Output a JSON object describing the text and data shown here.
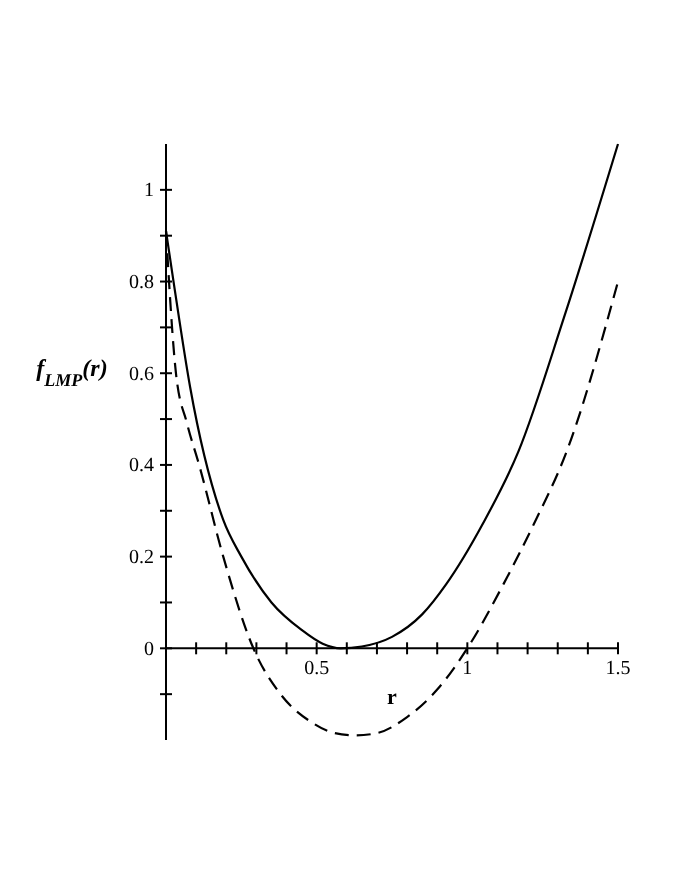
{
  "chart_data": {
    "type": "line",
    "xlabel": "r",
    "ylabel": "f$_{LMP}$(r)",
    "xlim": [
      0,
      1.5
    ],
    "ylim": [
      -0.2,
      1.1
    ],
    "xticks": [
      {
        "value": 0.1,
        "label": null
      },
      {
        "value": 0.2,
        "label": null
      },
      {
        "value": 0.3,
        "label": null
      },
      {
        "value": 0.4,
        "label": null
      },
      0.5,
      {
        "value": 0.6,
        "label": null
      },
      {
        "value": 0.7,
        "label": null
      },
      {
        "value": 0.8,
        "label": null
      },
      {
        "value": 0.9,
        "label": null
      },
      1,
      {
        "value": 1.1,
        "label": null
      },
      {
        "value": 1.2,
        "label": null
      },
      {
        "value": 1.3,
        "label": null
      },
      {
        "value": 1.4,
        "label": null
      },
      1.5
    ],
    "yticks": [
      {
        "value": -0.1,
        "label": null
      },
      0,
      {
        "value": 0.1,
        "label": null
      },
      0.2,
      {
        "value": 0.3,
        "label": null
      },
      0.4,
      {
        "value": 0.5,
        "label": null
      },
      0.6,
      {
        "value": 0.7,
        "label": null
      },
      0.8,
      {
        "value": 0.9,
        "label": null
      },
      1
    ],
    "grid": false,
    "marker": "none",
    "series": [
      {
        "color": "#000000",
        "line_style": "solid",
        "x": [
          0,
          0.025,
          0.08,
          0.19,
          0.25,
          0.35,
          0.45,
          0.52,
          0.58,
          0.65,
          0.75,
          0.85,
          0.93,
          1.05,
          1.17,
          1.32,
          1.5
        ],
        "values": [
          0.91,
          0.8,
          0.57,
          0.28,
          0.2,
          0.1,
          0.04,
          0.01,
          0,
          0.004,
          0.025,
          0.074,
          0.14,
          0.27,
          0.43,
          0.72,
          1.1
        ]
      },
      {
        "color": "#000000",
        "line_style": "dashed",
        "x": [
          0,
          0.033,
          0.07,
          0.11,
          0.19,
          0.29,
          0.38,
          0.48,
          0.56,
          0.63,
          0.7,
          0.8,
          0.9,
          1.0,
          1.12,
          1.22,
          1.33,
          1.5
        ],
        "values": [
          0.91,
          0.6,
          0.49,
          0.4,
          0.2,
          0,
          -0.1,
          -0.16,
          -0.185,
          -0.19,
          -0.185,
          -0.15,
          -0.09,
          0,
          0.14,
          0.27,
          0.43,
          0.8
        ]
      }
    ]
  }
}
